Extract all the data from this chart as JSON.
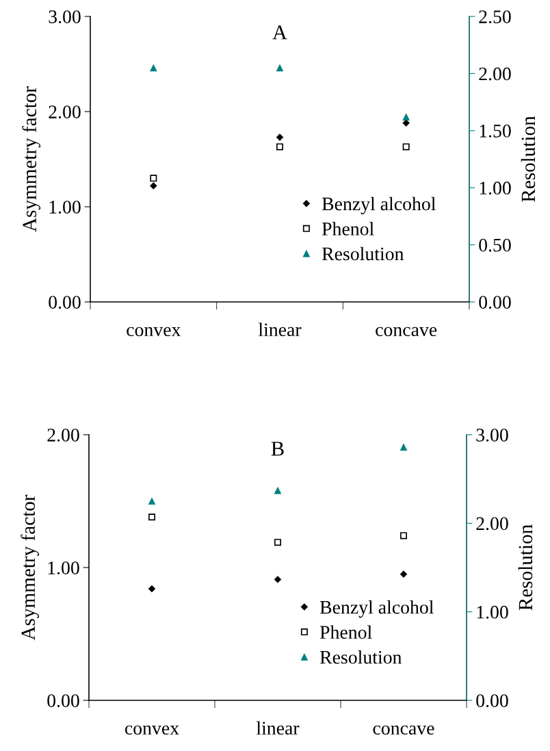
{
  "chart_data": [
    {
      "type": "scatter",
      "title": "A",
      "categories": [
        "convex",
        "linear",
        "concave"
      ],
      "ylabel": "Asymmetry factor",
      "y2label": "Resolution",
      "ylim": [
        0,
        3
      ],
      "yticks": [
        {
          "value": 0,
          "label": "0.00"
        },
        {
          "value": 1,
          "label": "1.00"
        },
        {
          "value": 2,
          "label": "2.00"
        },
        {
          "value": 3,
          "label": "3.00"
        }
      ],
      "y2lim": [
        0,
        2.5
      ],
      "y2ticks": [
        {
          "value": 0,
          "label": "0.00"
        },
        {
          "value": 0.5,
          "label": "0.50"
        },
        {
          "value": 1,
          "label": "1.00"
        },
        {
          "value": 1.5,
          "label": "1.50"
        },
        {
          "value": 2,
          "label": "2.00"
        },
        {
          "value": 2.5,
          "label": "2.50"
        }
      ],
      "legend": "lower right",
      "grid": false,
      "series": [
        {
          "name": "Benzyl alcohol",
          "color": "#000000",
          "marker": "diamond",
          "values": [
            1.22,
            1.73,
            1.88
          ]
        },
        {
          "name": "Phenol",
          "color": "#000000",
          "marker": "square",
          "values": [
            1.3,
            1.63,
            1.63
          ]
        },
        {
          "name": "Resolution",
          "color": "#008080",
          "marker": "triangle",
          "axis": "y2",
          "values": [
            2.05,
            2.05,
            1.62
          ]
        }
      ]
    },
    {
      "type": "scatter",
      "title": "B",
      "categories": [
        "convex",
        "linear",
        "concave"
      ],
      "ylabel": "Asymmetry factor",
      "y2label": "Resolution",
      "ylim": [
        0,
        2
      ],
      "yticks": [
        {
          "value": 0,
          "label": "0.00"
        },
        {
          "value": 1,
          "label": "1.00"
        },
        {
          "value": 2,
          "label": "2.00"
        }
      ],
      "y2lim": [
        0,
        3
      ],
      "y2ticks": [
        {
          "value": 0,
          "label": "0.00"
        },
        {
          "value": 1,
          "label": "1.00"
        },
        {
          "value": 2,
          "label": "2.00"
        },
        {
          "value": 3,
          "label": "3.00"
        }
      ],
      "legend": "lower right",
      "grid": false,
      "series": [
        {
          "name": "Benzyl alcohol",
          "color": "#000000",
          "marker": "diamond",
          "values": [
            0.84,
            0.91,
            0.95
          ]
        },
        {
          "name": "Phenol",
          "color": "#000000",
          "marker": "square",
          "values": [
            1.38,
            1.19,
            1.24
          ]
        },
        {
          "name": "Resolution",
          "color": "#008080",
          "marker": "triangle",
          "axis": "y2",
          "values": [
            2.25,
            2.37,
            2.86
          ]
        }
      ]
    }
  ]
}
